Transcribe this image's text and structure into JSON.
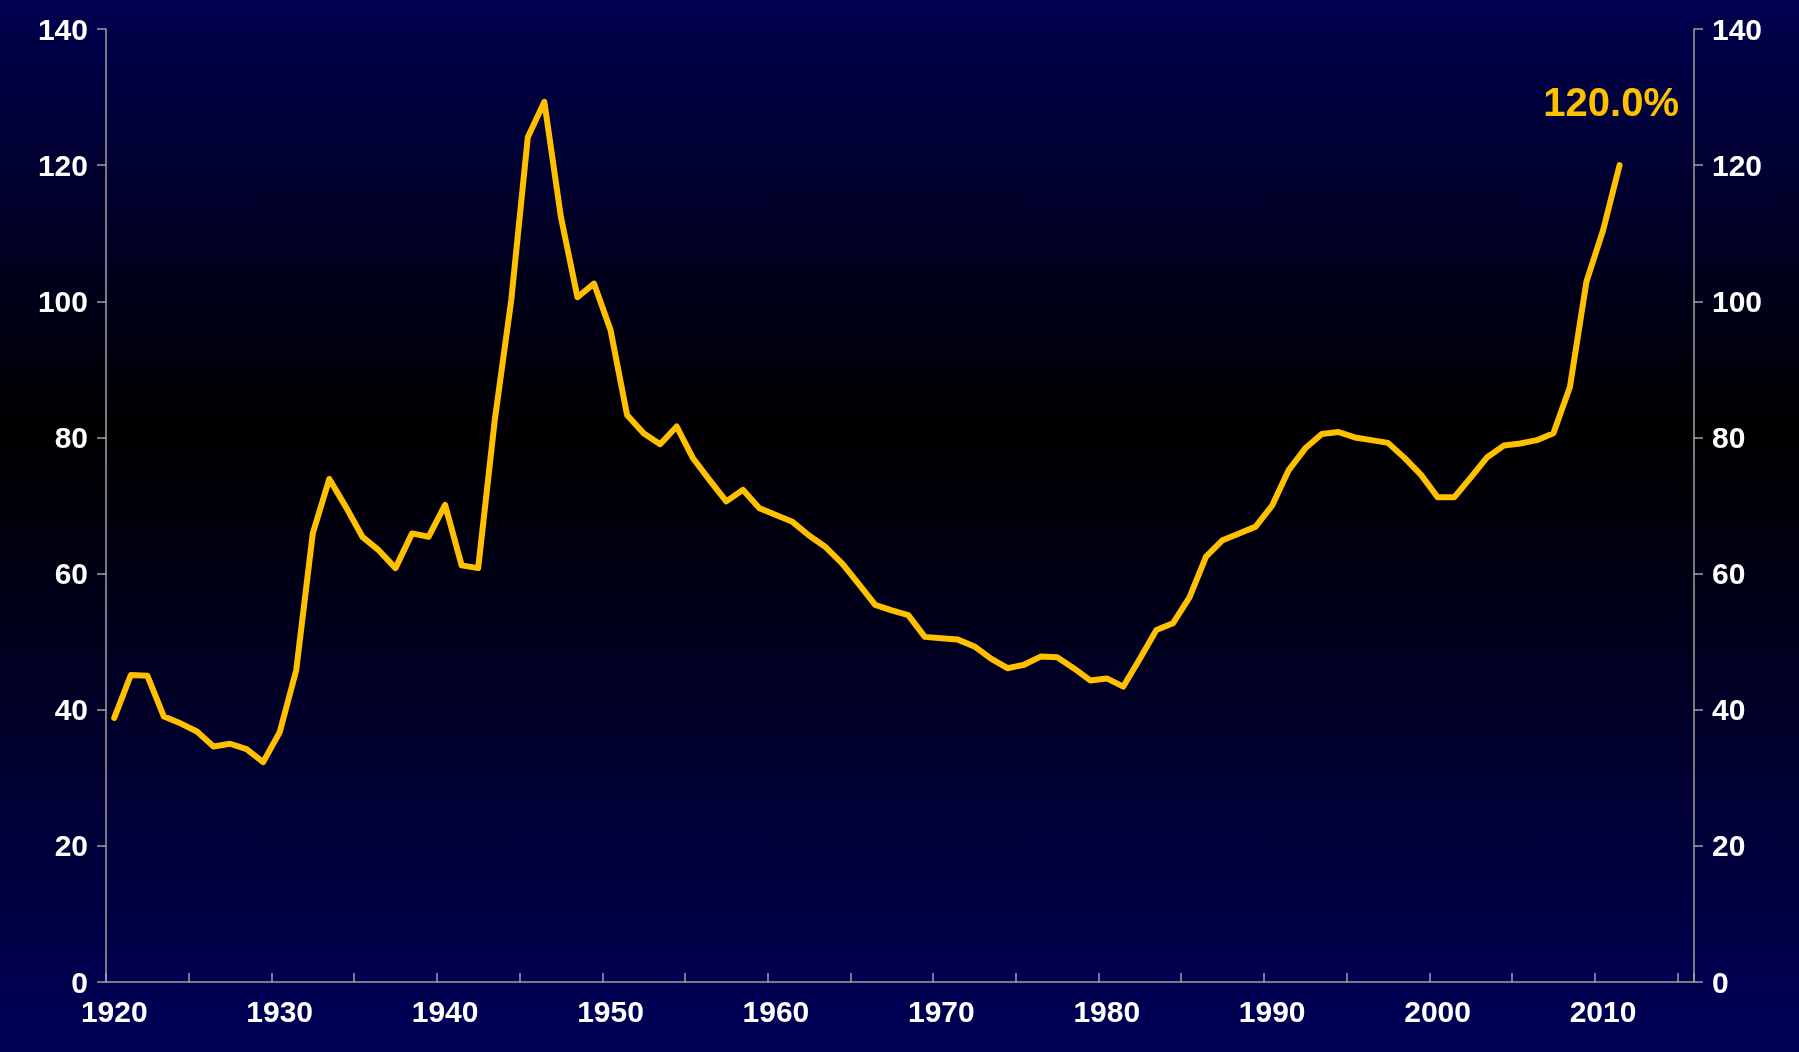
{
  "chart_data": {
    "type": "line",
    "categories": [
      "1920",
      null,
      null,
      null,
      null,
      null,
      null,
      null,
      null,
      null,
      "1930",
      null,
      null,
      null,
      null,
      null,
      null,
      null,
      null,
      null,
      "1940",
      null,
      null,
      null,
      null,
      null,
      null,
      null,
      null,
      null,
      "1950",
      null,
      null,
      null,
      null,
      null,
      null,
      null,
      null,
      null,
      "1960",
      null,
      null,
      null,
      null,
      null,
      null,
      null,
      null,
      null,
      "1970",
      null,
      null,
      null,
      null,
      null,
      null,
      null,
      null,
      null,
      "1980",
      null,
      null,
      null,
      null,
      null,
      null,
      null,
      null,
      null,
      "1990",
      null,
      null,
      null,
      null,
      null,
      null,
      null,
      null,
      null,
      "2000",
      null,
      null,
      null,
      null,
      null,
      null,
      null,
      null,
      null,
      "2010",
      null,
      null,
      null,
      null,
      null
    ],
    "series": [
      {
        "color": "#ffc000",
        "values": [
          38.8,
          45.1,
          45.0,
          39.0,
          38.0,
          36.8,
          34.6,
          35.0,
          34.2,
          32.3,
          36.7,
          45.8,
          65.9,
          73.9,
          69.8,
          65.4,
          63.4,
          60.8,
          65.9,
          65.4,
          70.1,
          61.2,
          60.8,
          82.5,
          100.2,
          124.1,
          129.3,
          112.4,
          100.6,
          102.6,
          95.8,
          83.3,
          80.6,
          79.0,
          81.6,
          76.9,
          73.7,
          70.6,
          72.3,
          69.6,
          68.6,
          67.6,
          65.6,
          63.9,
          61.5,
          58.5,
          55.4,
          54.6,
          53.9,
          50.7,
          50.5,
          50.3,
          49.3,
          47.5,
          46.1,
          46.6,
          47.8,
          47.7,
          46.1,
          44.3,
          44.6,
          43.4,
          47.5,
          51.7,
          52.7,
          56.5,
          62.5,
          64.9,
          65.9,
          66.9,
          70.0,
          75.2,
          78.4,
          80.5,
          80.8,
          80.0,
          79.6,
          79.2,
          77.0,
          74.5,
          71.2,
          71.2,
          74.1,
          77.1,
          78.8,
          79.1,
          79.6,
          80.6,
          87.4,
          102.9,
          110.4,
          120.0,
          null,
          null,
          null,
          null
        ]
      }
    ],
    "ylim": [
      0,
      140
    ],
    "yticks": [
      0,
      20,
      40,
      60,
      80,
      100,
      120,
      140
    ],
    "y2lim": [
      0,
      140
    ],
    "y2ticks": [
      0,
      20,
      40,
      60,
      80,
      100,
      120,
      140
    ],
    "annotations": [
      "120.0%"
    ],
    "marker": "none",
    "line_style": "solid",
    "grid": false
  }
}
